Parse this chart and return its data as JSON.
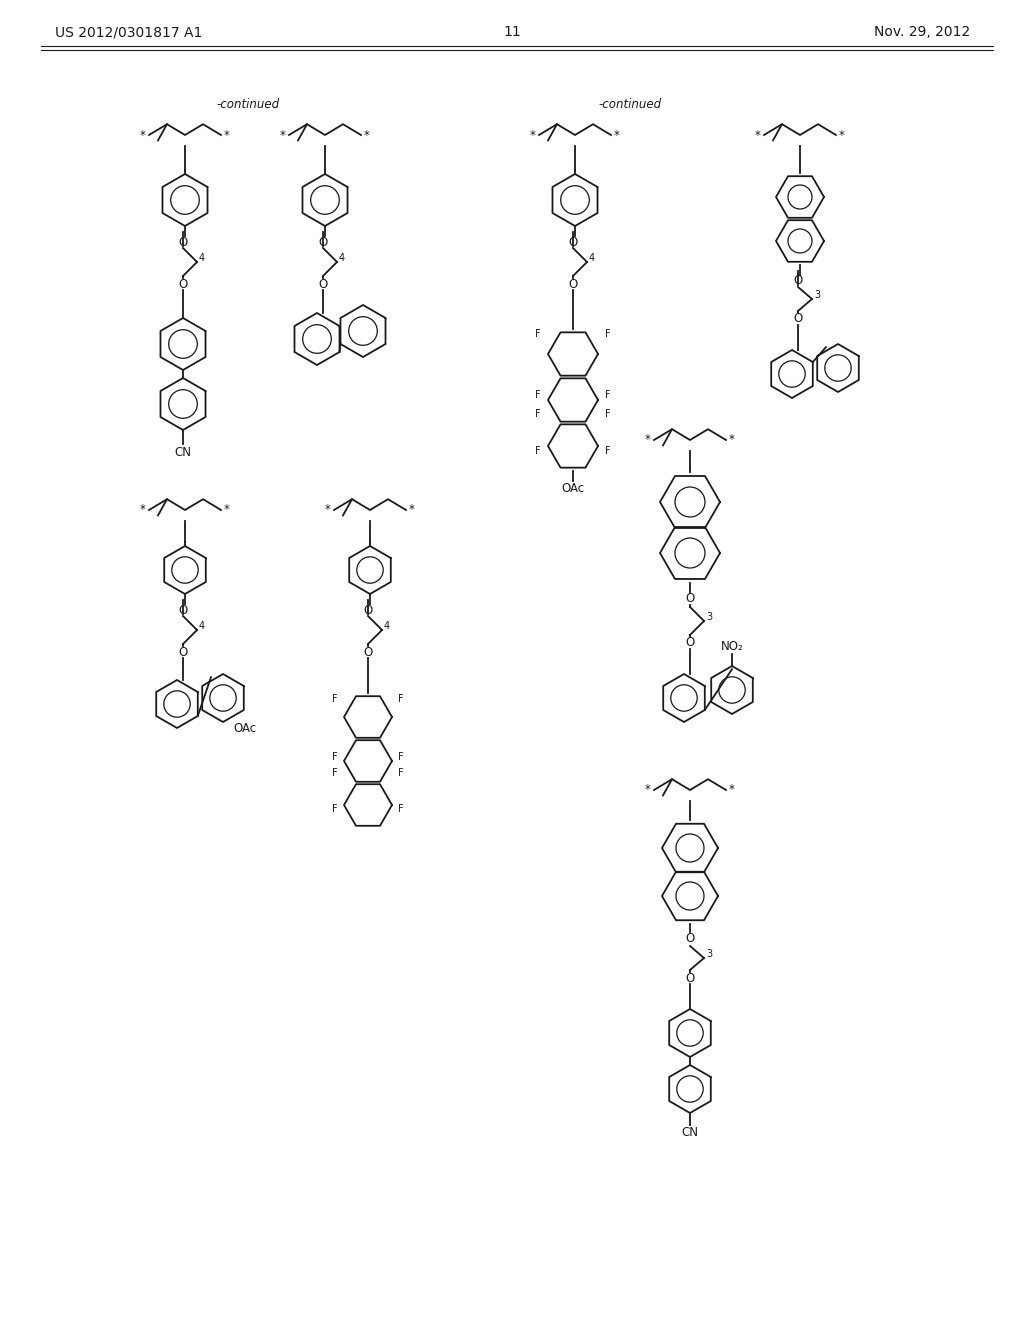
{
  "page_number": "11",
  "patent_number": "US 2012/0301817 A1",
  "date": "Nov. 29, 2012",
  "background_color": "#ffffff",
  "text_color": "#1a1a1a",
  "continued_label": "-continued",
  "figsize": [
    10.24,
    13.2
  ],
  "dpi": 100
}
